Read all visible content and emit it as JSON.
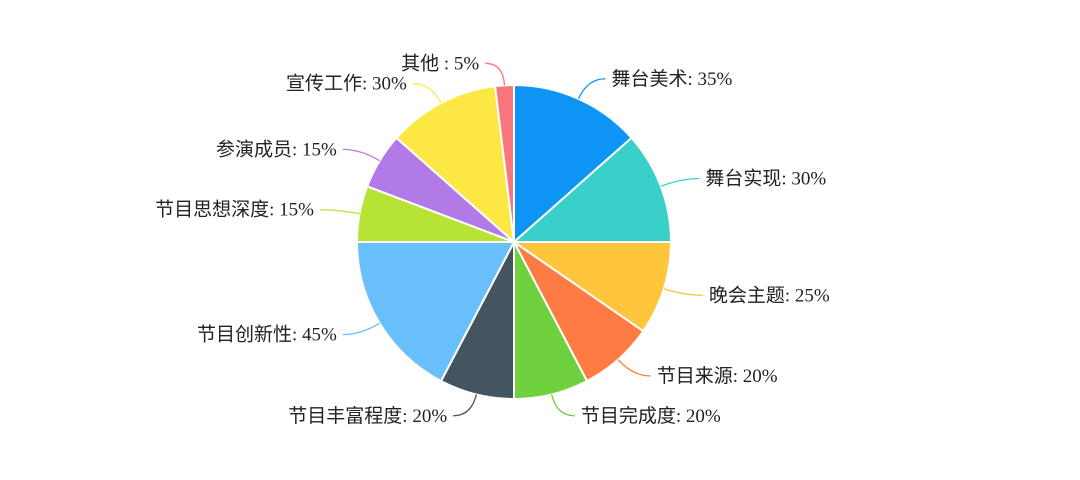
{
  "chart_data": {
    "type": "pie",
    "title": "",
    "slices": [
      {
        "label": "舞台美术",
        "value": 35,
        "display": "舞台美术: 35%",
        "color": "#0e94f5"
      },
      {
        "label": "舞台实现",
        "value": 30,
        "display": "舞台实现: 30%",
        "color": "#38d0c8"
      },
      {
        "label": "晚会主题",
        "value": 25,
        "display": "晚会主题: 25%",
        "color": "#ffc53d"
      },
      {
        "label": "节目来源",
        "value": 20,
        "display": "节目来源: 20%",
        "color": "#ff7b44"
      },
      {
        "label": "节目完成度",
        "value": 20,
        "display": "节目完成度: 20%",
        "color": "#6fd13e"
      },
      {
        "label": "节目丰富程度",
        "value": 20,
        "display": "节目丰富程度: 20%",
        "color": "#45555f"
      },
      {
        "label": "节目创新性",
        "value": 45,
        "display": "节目创新性: 45%",
        "color": "#69bffc"
      },
      {
        "label": "节目思想深度",
        "value": 15,
        "display": "节目思想深度: 15%",
        "color": "#b7e337"
      },
      {
        "label": "参演成员",
        "value": 15,
        "display": "参演成员: 15%",
        "color": "#b17ae6"
      },
      {
        "label": "宣传工作",
        "value": 30,
        "display": "宣传工作: 30%",
        "color": "#fde843"
      },
      {
        "label": "其他",
        "value": 5,
        "display": "其他 : 5%",
        "color": "#f9767c"
      }
    ]
  }
}
